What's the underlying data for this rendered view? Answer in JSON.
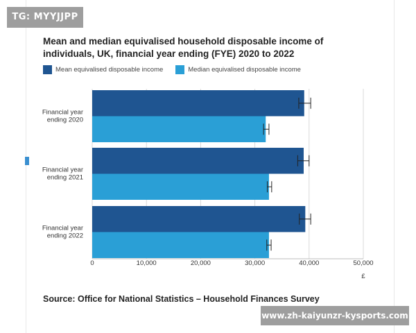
{
  "watermark_top": "TG: MYYJJPP",
  "watermark_bottom": "www.zh-kaiyunzr-kysports.com",
  "chart_data": {
    "type": "bar",
    "orientation": "horizontal",
    "title": "Mean and median equivalised household disposable income of individuals, UK, financial year ending (FYE) 2020 to 2022",
    "categories": [
      [
        "Financial year",
        "ending 2020"
      ],
      [
        "Financial year",
        "ending 2021"
      ],
      [
        "Financial year",
        "ending 2022"
      ]
    ],
    "series": [
      {
        "name": "Mean equivalised disposable income",
        "color": "#1f5591",
        "values": [
          39100,
          39000,
          39300
        ],
        "error": [
          [
            38100,
            40300
          ],
          [
            37900,
            40000
          ],
          [
            38200,
            40300
          ]
        ]
      },
      {
        "name": "Median equivalised disposable income",
        "color": "#2a9fd6",
        "values": [
          32000,
          32600,
          32600
        ],
        "error": [
          [
            31600,
            32600
          ],
          [
            32300,
            33100
          ],
          [
            32200,
            33000
          ]
        ]
      }
    ],
    "xlim": [
      0,
      50000
    ],
    "xticks": [
      0,
      10000,
      20000,
      30000,
      40000,
      50000
    ],
    "xtick_labels": [
      "0",
      "10,000",
      "20,000",
      "30,000",
      "40,000",
      "50,000"
    ],
    "xlabel": "£",
    "ylabel": "",
    "grid": true,
    "legend_position": "top-left"
  },
  "source": "Source: Office for National Statistics – Household Finances Survey"
}
